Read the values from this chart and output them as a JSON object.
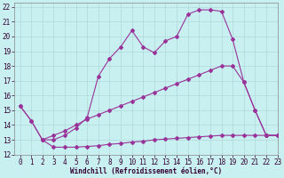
{
  "xlabel": "Windchill (Refroidissement éolien,°C)",
  "bg_color": "#c8f0f0",
  "grid_color": "#b0d8d8",
  "line_color": "#993399",
  "xlim": [
    -0.5,
    23
  ],
  "ylim": [
    12,
    22.3
  ],
  "yticks": [
    12,
    13,
    14,
    15,
    16,
    17,
    18,
    19,
    20,
    21,
    22
  ],
  "xticks": [
    0,
    1,
    2,
    3,
    4,
    5,
    6,
    7,
    8,
    9,
    10,
    11,
    12,
    13,
    14,
    15,
    16,
    17,
    18,
    19,
    20,
    21,
    22,
    23
  ],
  "line1_x": [
    0,
    1,
    2,
    3,
    4,
    5,
    6,
    7,
    8,
    9,
    10,
    11,
    12,
    13,
    14,
    15,
    16,
    17,
    18,
    19,
    20,
    21,
    22,
    23
  ],
  "line1_y": [
    15.3,
    14.3,
    13.0,
    12.5,
    12.5,
    12.5,
    12.55,
    12.6,
    12.7,
    12.75,
    12.85,
    12.9,
    13.0,
    13.05,
    13.1,
    13.15,
    13.2,
    13.25,
    13.3,
    13.3,
    13.3,
    13.3,
    13.3,
    13.3
  ],
  "line2_x": [
    0,
    1,
    2,
    3,
    4,
    5,
    6,
    7,
    8,
    9,
    10,
    11,
    12,
    13,
    14,
    15,
    16,
    17,
    18,
    19,
    20,
    21,
    22,
    23
  ],
  "line2_y": [
    15.3,
    14.3,
    13.0,
    13.3,
    13.6,
    14.0,
    14.4,
    14.7,
    15.0,
    15.3,
    15.6,
    15.9,
    16.2,
    16.5,
    16.8,
    17.1,
    17.4,
    17.7,
    18.0,
    18.0,
    16.9,
    15.0,
    13.3,
    13.3
  ],
  "line3_x": [
    2,
    3,
    4,
    5,
    6,
    7,
    8,
    9,
    10,
    11,
    12,
    13,
    14,
    15,
    16,
    17,
    18,
    19,
    20,
    21,
    22,
    23
  ],
  "line3_y": [
    13.0,
    13.0,
    13.3,
    13.8,
    14.5,
    17.3,
    18.5,
    19.3,
    20.4,
    19.3,
    18.9,
    19.7,
    20.0,
    21.5,
    21.8,
    21.8,
    21.7,
    19.8,
    16.9,
    15.0,
    13.3,
    13.3
  ],
  "markersize": 2.0,
  "linewidth": 0.8,
  "tick_fontsize": 5.5,
  "xlabel_fontsize": 5.5
}
